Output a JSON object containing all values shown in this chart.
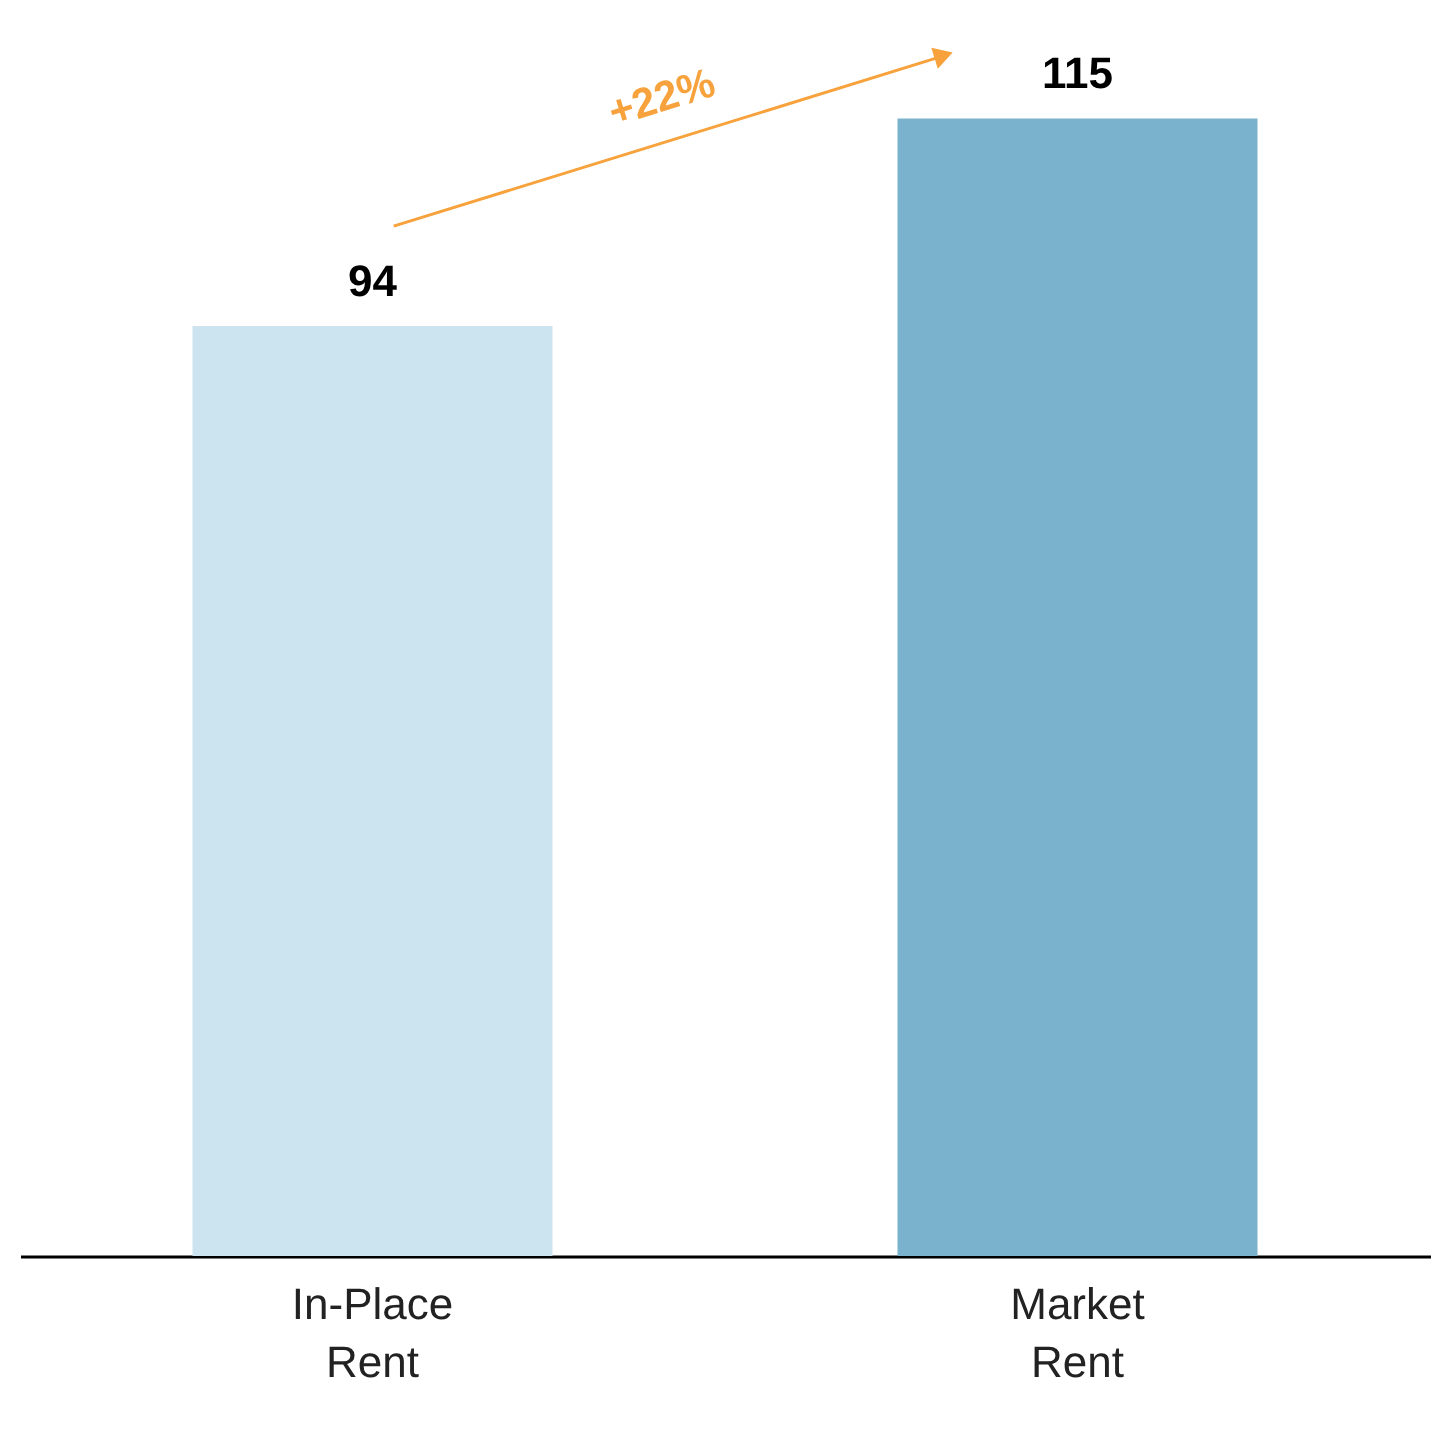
{
  "chart_data": {
    "type": "bar",
    "categories": [
      "In-Place Rent",
      "Market Rent"
    ],
    "values": [
      94,
      115
    ],
    "colors": [
      "#cbe4ef",
      "#7ab1cc"
    ],
    "data_labels": true,
    "annotations": [
      "+22%"
    ]
  }
}
